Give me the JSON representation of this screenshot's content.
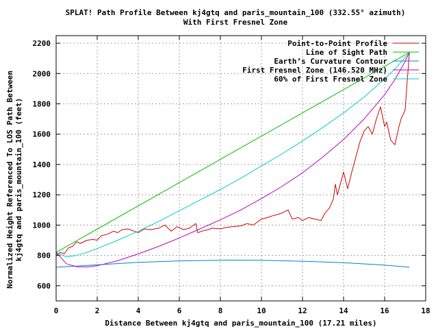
{
  "chart_data": {
    "type": "line",
    "title": "SPLAT! Path Profile Between kj4gtq and paris_mountain_100 (332.55° azimuth)",
    "subtitle": "With First Fresnel Zone",
    "xlabel": "Distance Between kj4gtq and paris_mountain_100 (17.21 miles)",
    "ylabel_line1": "Normalized Height Referenced To LOS Path Between",
    "ylabel_line2": "kj4gtq and paris_mountain_100 (feet)",
    "xlim": [
      0,
      18
    ],
    "ylim": [
      500,
      2250
    ],
    "x_ticks": [
      0,
      2,
      4,
      6,
      8,
      10,
      12,
      14,
      16,
      18
    ],
    "y_ticks": [
      600,
      800,
      1000,
      1200,
      1400,
      1600,
      1800,
      2000,
      2200
    ],
    "grid": true,
    "legend_position": "top-right",
    "series": [
      {
        "name": "Point-to-Point Profile",
        "color": "#cc0000",
        "x": [
          0,
          0.2,
          0.4,
          0.6,
          0.8,
          1.0,
          1.2,
          1.5,
          1.8,
          2.0,
          2.2,
          2.5,
          2.8,
          3.0,
          3.2,
          3.5,
          3.8,
          4.0,
          4.3,
          4.6,
          5.0,
          5.3,
          5.6,
          5.9,
          6.2,
          6.5,
          6.8,
          6.9,
          7.1,
          7.4,
          7.6,
          8.0,
          8.3,
          8.6,
          9.0,
          9.3,
          9.6,
          10.0,
          10.3,
          10.5,
          10.8,
          11.0,
          11.3,
          11.5,
          11.8,
          12.0,
          12.3,
          12.6,
          12.9,
          13.1,
          13.3,
          13.5,
          13.6,
          13.7,
          13.8,
          14.0,
          14.2,
          14.4,
          14.6,
          14.8,
          15.0,
          15.2,
          15.4,
          15.6,
          15.8,
          16.0,
          16.1,
          16.3,
          16.5,
          16.7,
          16.8,
          17.0,
          17.1,
          17.21
        ],
        "y": [
          800,
          820,
          810,
          850,
          860,
          890,
          880,
          900,
          905,
          900,
          930,
          940,
          960,
          950,
          970,
          975,
          960,
          950,
          975,
          970,
          980,
          1000,
          960,
          990,
          970,
          980,
          1010,
          950,
          960,
          970,
          980,
          975,
          985,
          990,
          995,
          1010,
          1000,
          1040,
          1050,
          1060,
          1070,
          1080,
          1100,
          1040,
          1050,
          1030,
          1050,
          1040,
          1030,
          1080,
          1110,
          1170,
          1270,
          1200,
          1250,
          1350,
          1240,
          1350,
          1450,
          1550,
          1620,
          1650,
          1600,
          1700,
          1780,
          1650,
          1680,
          1560,
          1530,
          1650,
          1700,
          1760,
          1950,
          2140
        ]
      },
      {
        "name": "Line of Sight Path",
        "color": "#00bb00",
        "x": [
          0,
          17.21
        ],
        "y": [
          820,
          2140
        ]
      },
      {
        "name": "Earth’s Curvature Contour",
        "color": "#0080cc",
        "x": [
          0,
          2,
          4,
          6,
          8,
          8.6,
          10,
          12,
          14,
          16,
          17.21
        ],
        "y": [
          722,
          738,
          754,
          764,
          768,
          769,
          768,
          762,
          752,
          736,
          722
        ]
      },
      {
        "name": "First Fresnel Zone (146.520 MHz)",
        "color": "#bb00bb",
        "x": [
          0,
          0.5,
          1,
          1.5,
          2,
          3,
          4,
          5,
          6,
          7,
          8,
          9,
          10,
          11,
          12,
          13,
          14,
          15,
          16,
          16.5,
          17,
          17.21
        ],
        "y": [
          820,
          745,
          725,
          724,
          732,
          765,
          810,
          860,
          915,
          975,
          1035,
          1100,
          1175,
          1255,
          1345,
          1450,
          1565,
          1700,
          1860,
          1960,
          2080,
          2140
        ]
      },
      {
        "name": "60% of First Fresnel Zone",
        "color": "#00cccc",
        "x": [
          0,
          0.5,
          1,
          1.5,
          2,
          3,
          4,
          5,
          6,
          7,
          8,
          9,
          10,
          11,
          12,
          13,
          14,
          15,
          16,
          16.5,
          17,
          17.21
        ],
        "y": [
          820,
          790,
          800,
          820,
          845,
          900,
          960,
          1025,
          1095,
          1165,
          1235,
          1310,
          1390,
          1470,
          1555,
          1645,
          1740,
          1845,
          1965,
          2030,
          2105,
          2140
        ]
      }
    ]
  }
}
